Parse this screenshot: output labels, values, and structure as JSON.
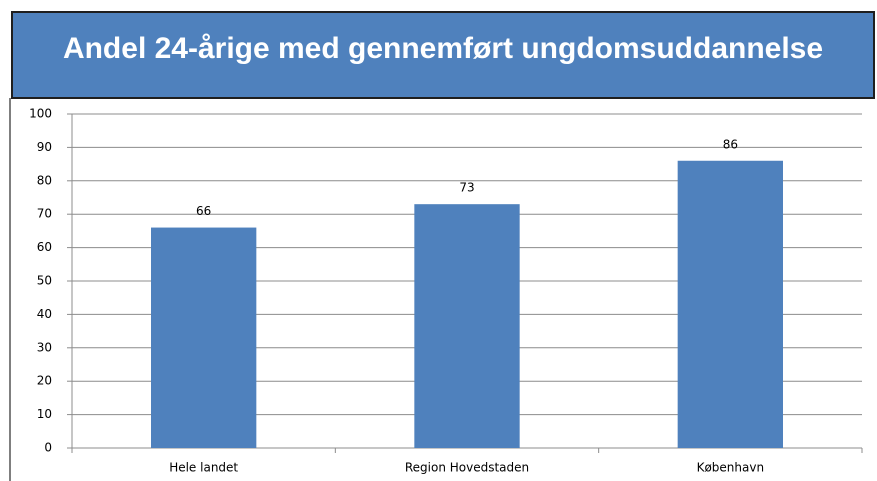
{
  "chart_data": {
    "type": "bar",
    "title": "Andel 24-årige med gennemført ungdomsuddannelse",
    "categories": [
      "Hele landet",
      "Region Hovedstaden",
      "København"
    ],
    "values": [
      66,
      73,
      86
    ],
    "color": "#4f81bd",
    "ylim": [
      0,
      100
    ],
    "yticks": [
      0,
      10,
      20,
      30,
      40,
      50,
      60,
      70,
      80,
      90,
      100
    ],
    "grid": true
  }
}
